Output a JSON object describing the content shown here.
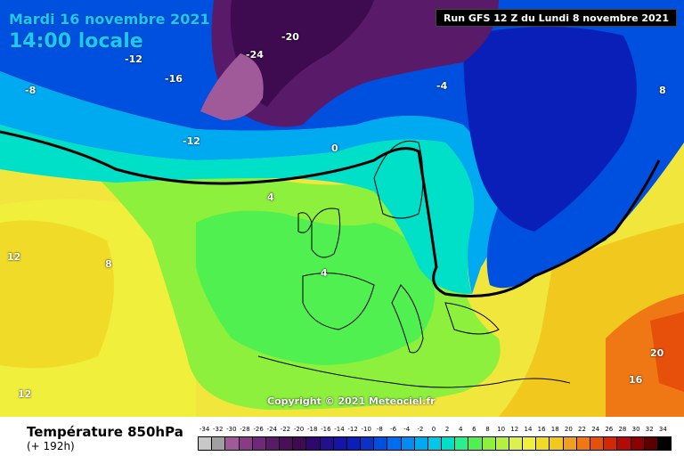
{
  "header": {
    "date": "Mardi 16 novembre 2021",
    "time": "14:00 locale",
    "run": "Run GFS 12 Z du Lundi 8 novembre 2021"
  },
  "map": {
    "copyright": "Copyright © 2021 Meteociel.fr",
    "labels": [
      {
        "t": "-4"
      },
      {
        "t": "-8"
      },
      {
        "t": "-12"
      },
      {
        "t": "-16"
      },
      {
        "t": "-20"
      },
      {
        "t": "-24"
      },
      {
        "t": "0"
      },
      {
        "t": "4"
      },
      {
        "t": "8"
      },
      {
        "t": "12"
      },
      {
        "t": "16"
      },
      {
        "t": "20"
      }
    ]
  },
  "legend": {
    "title": "Température 850hPa",
    "subtitle": "(+ 192h)",
    "values": [
      "-34",
      "-32",
      "-30",
      "-28",
      "-26",
      "-24",
      "-22",
      "-20",
      "-18",
      "-16",
      "-14",
      "-12",
      "-10",
      "-8",
      "-6",
      "-4",
      "-2",
      "0",
      "2",
      "4",
      "6",
      "8",
      "10",
      "12",
      "14",
      "16",
      "18",
      "20",
      "22",
      "24",
      "26",
      "28",
      "30",
      "32",
      "34"
    ],
    "colors": [
      "#c8c8c8",
      "#a0a0a0",
      "#a05a9a",
      "#8a3a86",
      "#6e2a78",
      "#5a1a6a",
      "#4a0f56",
      "#3e0a50",
      "#2e086e",
      "#22108c",
      "#1414a8",
      "#0a1fb8",
      "#0a32c8",
      "#0050e0",
      "#006cf0",
      "#008cf4",
      "#00aaf0",
      "#00c8e8",
      "#00e0c8",
      "#28f08c",
      "#50f050",
      "#8cf03c",
      "#b4f03c",
      "#dcf050",
      "#f0f03c",
      "#f0dc28",
      "#f0c81e",
      "#f0a01e",
      "#f07814",
      "#e6500a",
      "#d22808",
      "#b40a06",
      "#8c0000",
      "#5a0000",
      "#000000"
    ]
  }
}
